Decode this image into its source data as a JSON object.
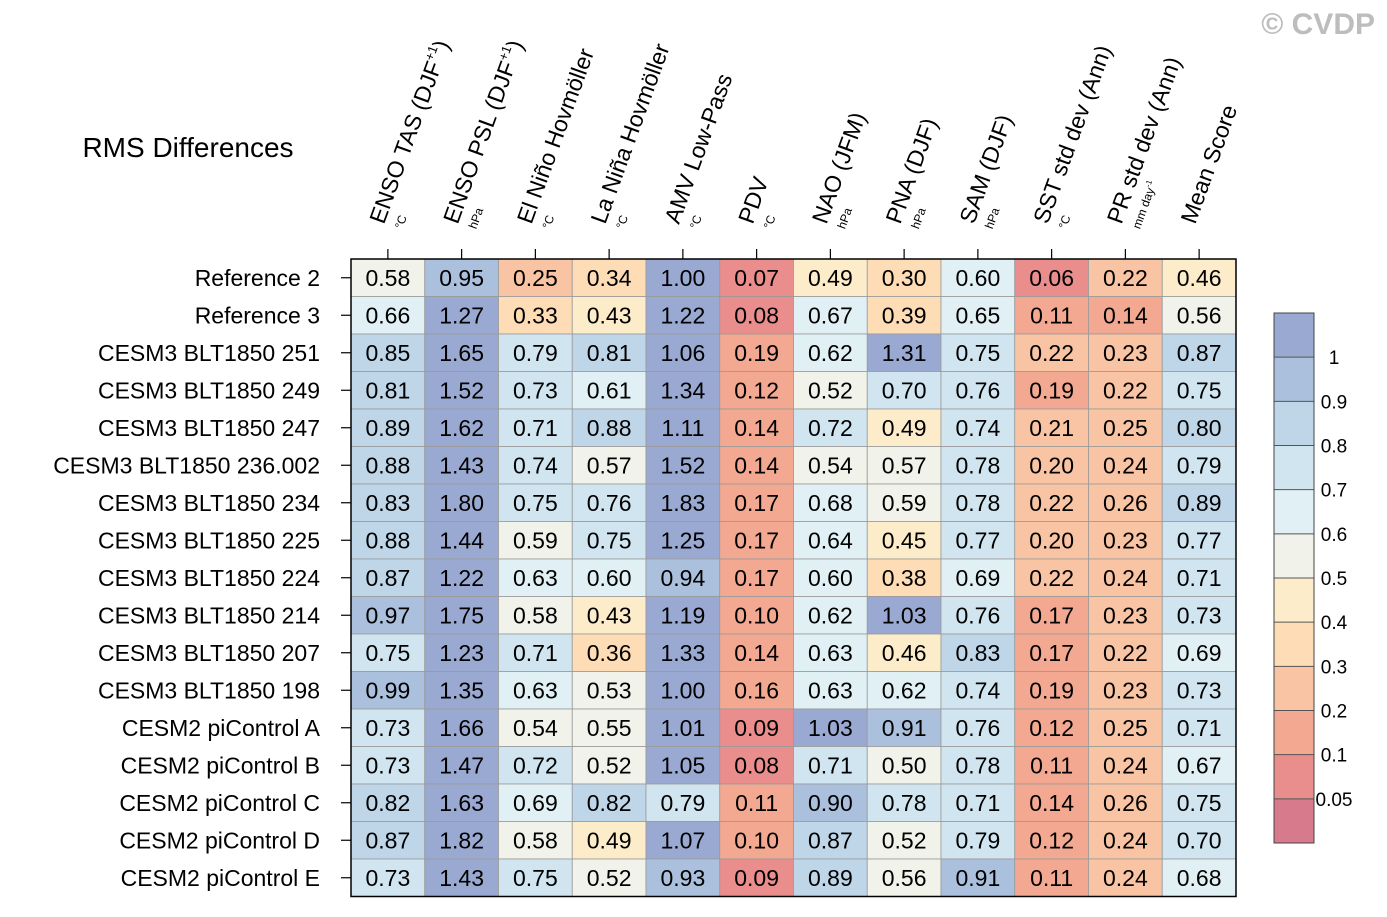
{
  "watermark": "© CVDP",
  "chart_data": {
    "type": "heatmap",
    "title": "RMS Differences",
    "columns": [
      {
        "name": "ENSO TAS (DJF",
        "sup": "+1",
        "close": ")",
        "unit": "°C"
      },
      {
        "name": "ENSO PSL (DJF",
        "sup": "+1",
        "close": ")",
        "unit": "hPa"
      },
      {
        "name": "El Niño Hovmöller",
        "sup": "",
        "close": "",
        "unit": "°C"
      },
      {
        "name": "La Niña Hovmöller",
        "sup": "",
        "close": "",
        "unit": "°C"
      },
      {
        "name": "AMV Low-Pass",
        "sup": "",
        "close": "",
        "unit": "°C"
      },
      {
        "name": "PDV",
        "sup": "",
        "close": "",
        "unit": "°C"
      },
      {
        "name": "NAO (JFM)",
        "sup": "",
        "close": "",
        "unit": "hPa"
      },
      {
        "name": "PNA (DJF)",
        "sup": "",
        "close": "",
        "unit": "hPa"
      },
      {
        "name": "SAM (DJF)",
        "sup": "",
        "close": "",
        "unit": "hPa"
      },
      {
        "name": "SST std dev (Ann)",
        "sup": "",
        "close": "",
        "unit": "°C"
      },
      {
        "name": "PR std dev (Ann)",
        "sup": "",
        "close": "",
        "unit": "mm day",
        "unit_sup": "-1"
      },
      {
        "name": "Mean Score",
        "sup": "",
        "close": "",
        "unit": ""
      }
    ],
    "rows": [
      "Reference 2",
      "Reference 3",
      "CESM3 BLT1850 251",
      "CESM3 BLT1850 249",
      "CESM3 BLT1850 247",
      "CESM3 BLT1850 236.002",
      "CESM3 BLT1850 234",
      "CESM3 BLT1850 225",
      "CESM3 BLT1850 224",
      "CESM3 BLT1850 214",
      "CESM3 BLT1850 207",
      "CESM3 BLT1850 198",
      "CESM2 piControl A",
      "CESM2 piControl B",
      "CESM2 piControl C",
      "CESM2 piControl D",
      "CESM2 piControl E"
    ],
    "values": [
      [
        "0.58",
        "0.95",
        "0.25",
        "0.34",
        "1.00",
        "0.07",
        "0.49",
        "0.30",
        "0.60",
        "0.06",
        "0.22",
        "0.46"
      ],
      [
        "0.66",
        "1.27",
        "0.33",
        "0.43",
        "1.22",
        "0.08",
        "0.67",
        "0.39",
        "0.65",
        "0.11",
        "0.14",
        "0.56"
      ],
      [
        "0.85",
        "1.65",
        "0.79",
        "0.81",
        "1.06",
        "0.19",
        "0.62",
        "1.31",
        "0.75",
        "0.22",
        "0.23",
        "0.87"
      ],
      [
        "0.81",
        "1.52",
        "0.73",
        "0.61",
        "1.34",
        "0.12",
        "0.52",
        "0.70",
        "0.76",
        "0.19",
        "0.22",
        "0.75"
      ],
      [
        "0.89",
        "1.62",
        "0.71",
        "0.88",
        "1.11",
        "0.14",
        "0.72",
        "0.49",
        "0.74",
        "0.21",
        "0.25",
        "0.80"
      ],
      [
        "0.88",
        "1.43",
        "0.74",
        "0.57",
        "1.52",
        "0.14",
        "0.54",
        "0.57",
        "0.78",
        "0.20",
        "0.24",
        "0.79"
      ],
      [
        "0.83",
        "1.80",
        "0.75",
        "0.76",
        "1.83",
        "0.17",
        "0.68",
        "0.59",
        "0.78",
        "0.22",
        "0.26",
        "0.89"
      ],
      [
        "0.88",
        "1.44",
        "0.59",
        "0.75",
        "1.25",
        "0.17",
        "0.64",
        "0.45",
        "0.77",
        "0.20",
        "0.23",
        "0.77"
      ],
      [
        "0.87",
        "1.22",
        "0.63",
        "0.60",
        "0.94",
        "0.17",
        "0.60",
        "0.38",
        "0.69",
        "0.22",
        "0.24",
        "0.71"
      ],
      [
        "0.97",
        "1.75",
        "0.58",
        "0.43",
        "1.19",
        "0.10",
        "0.62",
        "1.03",
        "0.76",
        "0.17",
        "0.23",
        "0.73"
      ],
      [
        "0.75",
        "1.23",
        "0.71",
        "0.36",
        "1.33",
        "0.14",
        "0.63",
        "0.46",
        "0.83",
        "0.17",
        "0.22",
        "0.69"
      ],
      [
        "0.99",
        "1.35",
        "0.63",
        "0.53",
        "1.00",
        "0.16",
        "0.63",
        "0.62",
        "0.74",
        "0.19",
        "0.23",
        "0.73"
      ],
      [
        "0.73",
        "1.66",
        "0.54",
        "0.55",
        "1.01",
        "0.09",
        "1.03",
        "0.91",
        "0.76",
        "0.12",
        "0.25",
        "0.71"
      ],
      [
        "0.73",
        "1.47",
        "0.72",
        "0.52",
        "1.05",
        "0.08",
        "0.71",
        "0.50",
        "0.78",
        "0.11",
        "0.24",
        "0.67"
      ],
      [
        "0.82",
        "1.63",
        "0.69",
        "0.82",
        "0.79",
        "0.11",
        "0.90",
        "0.78",
        "0.71",
        "0.14",
        "0.26",
        "0.75"
      ],
      [
        "0.87",
        "1.82",
        "0.58",
        "0.49",
        "1.07",
        "0.10",
        "0.87",
        "0.52",
        "0.79",
        "0.12",
        "0.24",
        "0.70"
      ],
      [
        "0.73",
        "1.43",
        "0.75",
        "0.52",
        "0.93",
        "0.09",
        "0.89",
        "0.56",
        "0.91",
        "0.11",
        "0.24",
        "0.68"
      ]
    ],
    "colorbar": {
      "labels": [
        "1",
        "0.9",
        "0.8",
        "0.7",
        "0.6",
        "0.5",
        "0.4",
        "0.3",
        "0.2",
        "0.1",
        "0.05"
      ],
      "thresholds": [
        1,
        0.9,
        0.8,
        0.7,
        0.6,
        0.5,
        0.4,
        0.3,
        0.2,
        0.1,
        0.05
      ],
      "colors": [
        "#9aa9d1",
        "#abc0dc",
        "#bed6e8",
        "#d0e5f0",
        "#e1f0f5",
        "#f1f2e9",
        "#fdecca",
        "#fddcb6",
        "#f9c4a3",
        "#f2a891",
        "#e98d8d",
        "#d77a8b"
      ]
    }
  }
}
